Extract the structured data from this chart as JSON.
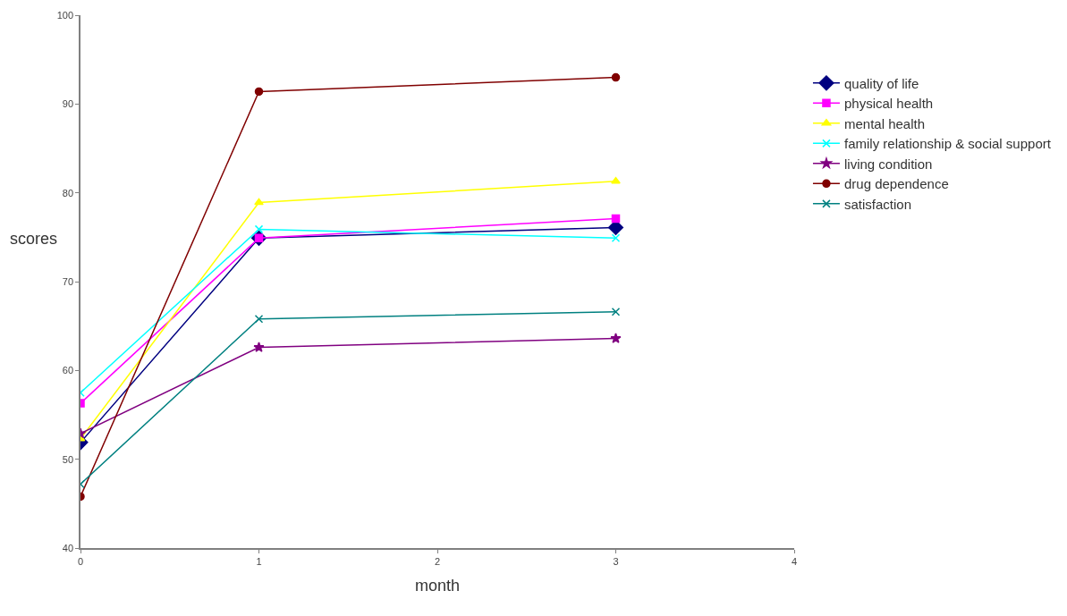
{
  "chart_data": {
    "type": "line",
    "xlabel": "month",
    "ylabel": "scores",
    "x": [
      0,
      1,
      3
    ],
    "xlim": [
      0,
      4
    ],
    "xticks": [
      0,
      1,
      2,
      3,
      4
    ],
    "ylim": [
      40,
      100
    ],
    "yticks": [
      40,
      50,
      60,
      70,
      80,
      90,
      100
    ],
    "legend": "right",
    "line_style": "solid",
    "series": [
      {
        "name": "quality of life",
        "color": "#000080",
        "marker": "diamond",
        "values": [
          51.9,
          74.9,
          76.1
        ]
      },
      {
        "name": "physical health",
        "color": "#ff00ff",
        "marker": "square",
        "values": [
          56.3,
          74.9,
          77.1
        ]
      },
      {
        "name": "mental health",
        "color": "#ffff00",
        "marker": "triangle",
        "values": [
          52.3,
          78.9,
          81.3
        ]
      },
      {
        "name": "family relationship & social support",
        "color": "#00ffff",
        "marker": "cross",
        "values": [
          57.5,
          75.9,
          74.9
        ]
      },
      {
        "name": "living condition",
        "color": "#800080",
        "marker": "star",
        "values": [
          52.9,
          62.6,
          63.6
        ]
      },
      {
        "name": "drug dependence",
        "color": "#800000",
        "marker": "circle",
        "values": [
          45.8,
          91.4,
          93.0
        ]
      },
      {
        "name": "satisfaction",
        "color": "#008080",
        "marker": "cross",
        "values": [
          47.2,
          65.8,
          66.6
        ]
      }
    ]
  }
}
